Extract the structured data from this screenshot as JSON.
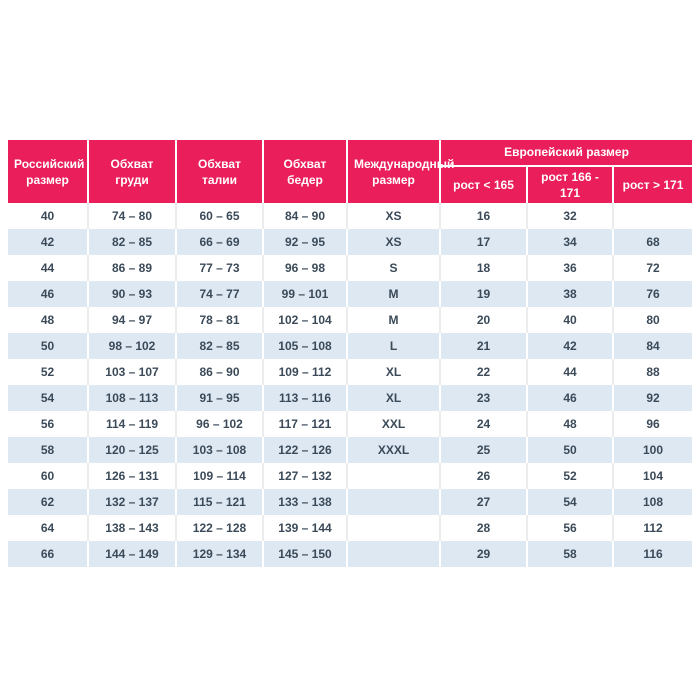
{
  "colors": {
    "header_bg": "#e91e5b",
    "header_text": "#ffffff",
    "row_alt_bg": "#dde8f3",
    "row_text": "#3b4a59",
    "separator_on_white": "#ececee",
    "separator_on_blue": "#ffffff"
  },
  "header": {
    "russian_size": "Российский размер",
    "chest": "Обхват груди",
    "waist": "Обхват талии",
    "hips": "Обхват бедер",
    "international_size": "Международный размер",
    "european_size": "Европейский размер",
    "height_lt": "рост < 165",
    "height_mid": "рост 166 - 171",
    "height_gt": "рост > 171"
  },
  "chart_data": {
    "type": "table",
    "columns": [
      "Российский размер",
      "Обхват груди",
      "Обхват талии",
      "Обхват бедер",
      "Международный размер",
      "Европейский размер — рост < 165",
      "Европейский размер — рост 166 - 171",
      "Европейский размер — рост > 171"
    ],
    "rows": [
      [
        "40",
        "74 – 80",
        "60 – 65",
        "84 – 90",
        "XS",
        "16",
        "32",
        ""
      ],
      [
        "42",
        "82 – 85",
        "66 – 69",
        "92 – 95",
        "XS",
        "17",
        "34",
        "68"
      ],
      [
        "44",
        "86 – 89",
        "77 – 73",
        "96 – 98",
        "S",
        "18",
        "36",
        "72"
      ],
      [
        "46",
        "90 – 93",
        "74 – 77",
        "99 – 101",
        "M",
        "19",
        "38",
        "76"
      ],
      [
        "48",
        "94 – 97",
        "78 – 81",
        "102 – 104",
        "M",
        "20",
        "40",
        "80"
      ],
      [
        "50",
        "98 – 102",
        "82 – 85",
        "105 – 108",
        "L",
        "21",
        "42",
        "84"
      ],
      [
        "52",
        "103 – 107",
        "86 – 90",
        "109 – 112",
        "XL",
        "22",
        "44",
        "88"
      ],
      [
        "54",
        "108 – 113",
        "91 – 95",
        "113 – 116",
        "XL",
        "23",
        "46",
        "92"
      ],
      [
        "56",
        "114 – 119",
        "96 – 102",
        "117 – 121",
        "XXL",
        "24",
        "48",
        "96"
      ],
      [
        "58",
        "120 – 125",
        "103 – 108",
        "122 – 126",
        "XXXL",
        "25",
        "50",
        "100"
      ],
      [
        "60",
        "126 – 131",
        "109 – 114",
        "127 – 132",
        "",
        "26",
        "52",
        "104"
      ],
      [
        "62",
        "132 – 137",
        "115 – 121",
        "133 – 138",
        "",
        "27",
        "54",
        "108"
      ],
      [
        "64",
        "138 – 143",
        "122 – 128",
        "139 – 144",
        "",
        "28",
        "56",
        "112"
      ],
      [
        "66",
        "144 – 149",
        "129 – 134",
        "145 – 150",
        "",
        "29",
        "58",
        "116"
      ]
    ]
  }
}
